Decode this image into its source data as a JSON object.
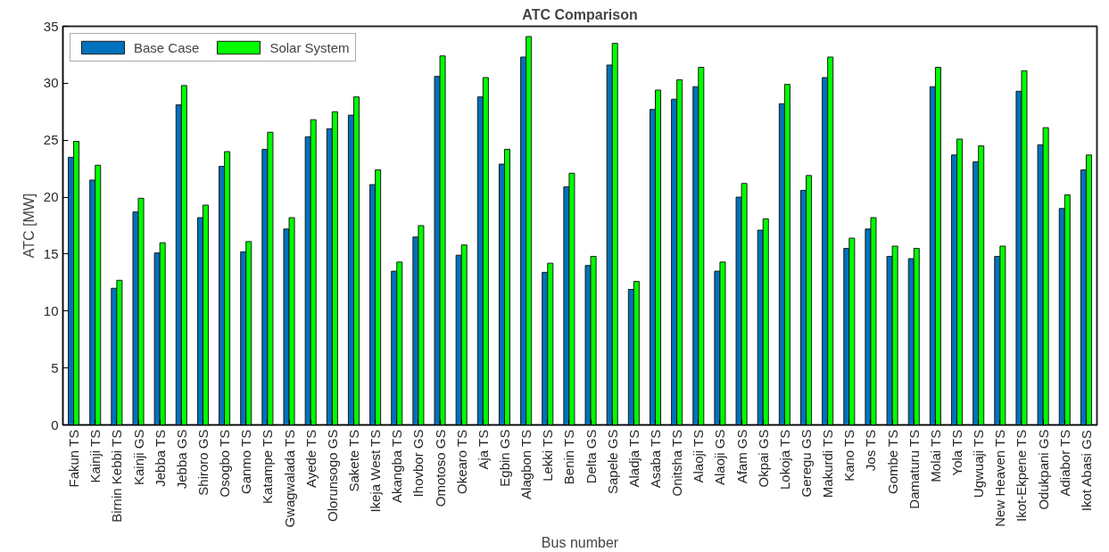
{
  "chart_data": {
    "type": "bar",
    "title": "ATC Comparison",
    "xlabel": "Bus number",
    "ylabel": "ATC [MW]",
    "categories": [
      "Fakun TS",
      "Kainji TS",
      "Birnin Kebbi TS",
      "Kainji GS",
      "Jebba TS",
      "Jebba GS",
      "Shiroro GS",
      "Osogbo TS",
      "Ganmo TS",
      "Katampe TS",
      "Gwagwalada TS",
      "Ayede TS",
      "Olorunsogo GS",
      "Sakete TS",
      "Ikeja West TS",
      "Akangba TS",
      "Ihovbor GS",
      "Omotoso GS",
      "Okearo TS",
      "Aja TS",
      "Egbin GS",
      "Alagbon TS",
      "Lekki TS",
      "Benin TS",
      "Delta GS",
      "Sapele GS",
      "Aladja TS",
      "Asaba TS",
      "Onitsha TS",
      "Alaoji TS",
      "Alaoji GS",
      "Afam GS",
      "Okpai GS",
      "Lokoja TS",
      "Geregu GS",
      "Makurdi TS",
      "Kano TS",
      "Jos TS",
      "Gombe TS",
      "Damaturu TS",
      "Molai TS",
      "Yola TS",
      "Ugwuaji TS",
      "New Heaven TS",
      "Ikot-Ekpene TS",
      "Odukpani GS",
      "Adiabor TS",
      "Ikot Abasi GS"
    ],
    "series": [
      {
        "name": "Base Case",
        "color": "#0072bd",
        "values": [
          23.5,
          21.5,
          12.0,
          18.7,
          15.1,
          28.1,
          18.2,
          22.7,
          15.2,
          24.2,
          17.2,
          25.3,
          26.0,
          27.2,
          21.1,
          13.5,
          16.5,
          30.6,
          14.9,
          28.8,
          22.9,
          32.3,
          13.4,
          20.9,
          14.0,
          31.6,
          11.9,
          27.7,
          28.6,
          29.7,
          13.5,
          20.0,
          17.1,
          28.2,
          20.6,
          30.5,
          15.5,
          17.2,
          14.8,
          14.6,
          29.7,
          23.7,
          23.1,
          14.8,
          29.3,
          24.6,
          19.0,
          22.4
        ]
      },
      {
        "name": "Solar System",
        "color": "#00ff00",
        "values": [
          24.9,
          22.8,
          12.7,
          19.9,
          16.0,
          29.8,
          19.3,
          24.0,
          16.1,
          25.7,
          18.2,
          26.8,
          27.5,
          28.8,
          22.4,
          14.3,
          17.5,
          32.4,
          15.8,
          30.5,
          24.2,
          34.1,
          14.2,
          22.1,
          14.8,
          33.5,
          12.6,
          29.4,
          30.3,
          31.4,
          14.3,
          21.2,
          18.1,
          29.9,
          21.9,
          32.3,
          16.4,
          18.2,
          15.7,
          15.5,
          31.4,
          25.1,
          24.5,
          15.7,
          31.1,
          26.1,
          20.2,
          23.7
        ]
      }
    ],
    "ylim": [
      0,
      35
    ],
    "yticks": [
      0,
      5,
      10,
      15,
      20,
      25,
      30,
      35
    ],
    "grid": false,
    "legend": "top left"
  }
}
